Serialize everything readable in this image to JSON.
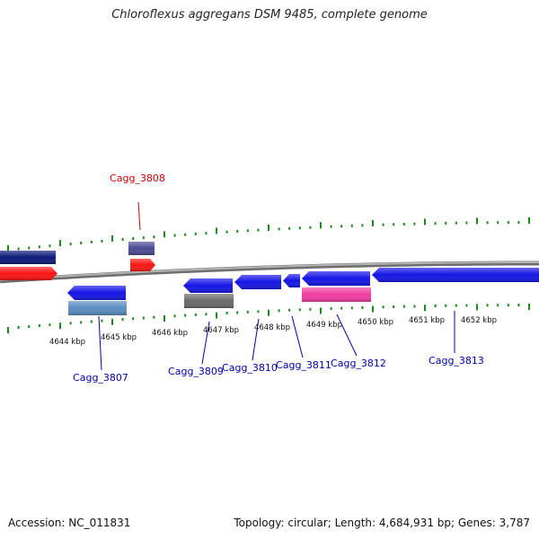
{
  "title": "Chloroflexus aggregans DSM 9485, complete genome",
  "footer": {
    "accession": "Accession: NC_011831",
    "topology": "Topology: circular; Length: 4,684,931 bp; Genes: 3,787"
  },
  "colors": {
    "backbone": "#8c8c8c",
    "tick": "#1a8a1a",
    "label_forward": "#cc0000",
    "label_reverse": "#0000aa",
    "navy": "#0a1a7a",
    "red": "#ff1414",
    "slate": "#4a4a96",
    "blue": "#1414e6",
    "steelblue": "#5a8cc0",
    "gray": "#6a6a6a",
    "pink": "#f03ca0"
  },
  "scale": {
    "unit": "kbp",
    "labels": [
      "4644 kbp",
      "4645 kbp",
      "4646 kbp",
      "4647 kbp",
      "4648 kbp",
      "4649 kbp",
      "4650 kbp",
      "4651 kbp",
      "4652 kbp"
    ]
  },
  "genes": [
    {
      "locus": "Cagg_3807",
      "strand": "reverse",
      "color": "blue"
    },
    {
      "locus": "Cagg_3808",
      "strand": "forward",
      "color": "red"
    },
    {
      "locus": "Cagg_3809",
      "strand": "reverse",
      "color": "blue"
    },
    {
      "locus": "Cagg_3810",
      "strand": "reverse",
      "color": "blue"
    },
    {
      "locus": "Cagg_3811",
      "strand": "reverse",
      "color": "blue"
    },
    {
      "locus": "Cagg_3812",
      "strand": "reverse",
      "color": "blue"
    },
    {
      "locus": "Cagg_3813",
      "strand": "reverse",
      "color": "blue"
    }
  ]
}
